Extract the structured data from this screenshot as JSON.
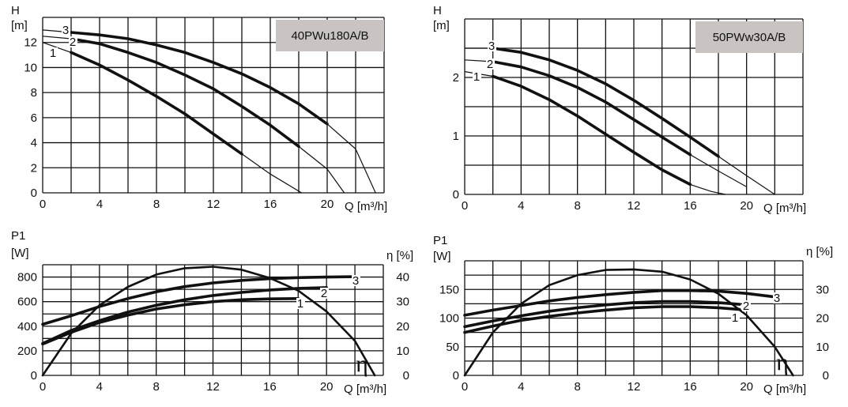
{
  "chart_data": [
    {
      "type": "line",
      "title": "40PWu180A/B",
      "title_box_color": "#c9c3c1",
      "ylabel_symbol": "H",
      "ylabel_unit": "[m]",
      "xlabel": "Q [m³/h]",
      "xlim": [
        0,
        24
      ],
      "ylim": [
        0,
        14
      ],
      "xticks": [
        "0",
        "4",
        "8",
        "12",
        "16",
        "20"
      ],
      "yticks": [
        "0",
        "2",
        "4",
        "6",
        "8",
        "10",
        "12"
      ],
      "grid": true,
      "series": [
        {
          "name": "1",
          "x": [
            0,
            2,
            4,
            6,
            8,
            10,
            12,
            14,
            16,
            18.2
          ],
          "y": [
            12.0,
            11.2,
            10.2,
            9.0,
            7.7,
            6.3,
            4.7,
            3.1,
            1.5,
            0
          ]
        },
        {
          "name": "2",
          "x": [
            0,
            2,
            4,
            6,
            8,
            10,
            12,
            14,
            16,
            18,
            20,
            21.2
          ],
          "y": [
            12.5,
            12.3,
            11.9,
            11.2,
            10.4,
            9.4,
            8.3,
            6.9,
            5.4,
            3.7,
            1.9,
            0
          ]
        },
        {
          "name": "3",
          "x": [
            0,
            2,
            4,
            6,
            8,
            10,
            12,
            14,
            16,
            18,
            20,
            22,
            23.4
          ],
          "y": [
            13.0,
            12.8,
            12.6,
            12.3,
            11.8,
            11.2,
            10.4,
            9.5,
            8.4,
            7.1,
            5.5,
            3.5,
            0
          ]
        }
      ]
    },
    {
      "type": "line",
      "title": "50PWw30A/B",
      "title_box_color": "#c9c3c1",
      "ylabel_symbol": "H",
      "ylabel_unit": "[m]",
      "xlabel": "Q [m³/h]",
      "xlim": [
        0,
        24
      ],
      "ylim": [
        0,
        3
      ],
      "xticks": [
        "0",
        "4",
        "8",
        "12",
        "16",
        "20"
      ],
      "yticks": [
        "0",
        "1",
        "2"
      ],
      "grid": true,
      "series": [
        {
          "name": "1",
          "x": [
            0,
            2,
            4,
            6,
            8,
            10,
            12,
            14,
            16,
            17.5,
            18.5
          ],
          "y": [
            2.1,
            2.02,
            1.85,
            1.62,
            1.34,
            1.03,
            0.72,
            0.42,
            0.17,
            0.05,
            0
          ]
        },
        {
          "name": "2",
          "x": [
            0,
            2,
            4,
            6,
            8,
            10,
            12,
            14,
            16,
            18,
            20
          ],
          "y": [
            2.3,
            2.27,
            2.18,
            2.03,
            1.83,
            1.58,
            1.28,
            0.98,
            0.68,
            0.4,
            0.13
          ]
        },
        {
          "name": "3",
          "x": [
            0,
            2,
            4,
            6,
            8,
            10,
            12,
            14,
            16,
            18,
            20,
            22
          ],
          "y": [
            2.5,
            2.5,
            2.43,
            2.3,
            2.12,
            1.89,
            1.61,
            1.3,
            0.98,
            0.65,
            0.32,
            0
          ]
        }
      ]
    },
    {
      "type": "line",
      "ylabel_symbol": "P1",
      "ylabel_unit": "[W]",
      "y2label": "η [%]",
      "xlabel": "Q [m³/h]",
      "xlim": [
        0,
        24
      ],
      "ylim": [
        0,
        900
      ],
      "y2lim": [
        0,
        45
      ],
      "xticks": [
        "0",
        "4",
        "8",
        "12",
        "16",
        "20"
      ],
      "yticks": [
        "0",
        "200",
        "400",
        "600",
        "800"
      ],
      "y2ticks": [
        "0",
        "10",
        "20",
        "30",
        "40"
      ],
      "grid": true,
      "series": [
        {
          "name": "1",
          "axis": "left",
          "x": [
            0,
            2,
            4,
            6,
            8,
            10,
            12,
            14,
            16,
            18
          ],
          "y": [
            255,
            350,
            430,
            490,
            540,
            575,
            600,
            615,
            622,
            625
          ]
        },
        {
          "name": "2",
          "axis": "left",
          "x": [
            0,
            2,
            4,
            6,
            8,
            10,
            12,
            14,
            16,
            18,
            20
          ],
          "y": [
            260,
            365,
            445,
            515,
            570,
            615,
            650,
            675,
            695,
            708,
            714
          ]
        },
        {
          "name": "3",
          "axis": "left",
          "x": [
            0,
            2,
            4,
            6,
            8,
            10,
            12,
            14,
            16,
            18,
            20,
            22
          ],
          "y": [
            415,
            485,
            560,
            625,
            680,
            722,
            752,
            773,
            787,
            795,
            800,
            803
          ]
        },
        {
          "name": "η",
          "axis": "right",
          "x": [
            0,
            2,
            4,
            6,
            8,
            10,
            12,
            14,
            16,
            18,
            20,
            22,
            23.4
          ],
          "y": [
            0,
            17,
            28.5,
            36,
            41,
            43.6,
            44.2,
            43,
            39.6,
            34.5,
            26,
            14,
            0
          ]
        }
      ]
    },
    {
      "type": "line",
      "ylabel_symbol": "P1",
      "ylabel_unit": "[W]",
      "y2label": "η [%]",
      "xlabel": "Q [m³/h]",
      "xlim": [
        0,
        24
      ],
      "ylim": [
        0,
        200
      ],
      "y2lim": [
        0,
        40
      ],
      "xticks": [
        "0",
        "4",
        "8",
        "12",
        "16",
        "20"
      ],
      "yticks": [
        "0",
        "50",
        "100",
        "150"
      ],
      "y2ticks": [
        "0",
        "10",
        "20",
        "30"
      ],
      "grid": true,
      "series": [
        {
          "name": "1",
          "axis": "left",
          "x": [
            0,
            2,
            4,
            6,
            8,
            10,
            12,
            14,
            16,
            18,
            19.5
          ],
          "y": [
            75,
            86,
            96,
            103,
            109,
            114,
            118,
            120,
            120,
            118,
            115
          ]
        },
        {
          "name": "2",
          "axis": "left",
          "x": [
            0,
            2,
            4,
            6,
            8,
            10,
            12,
            14,
            16,
            18,
            19.5
          ],
          "y": [
            85,
            95,
            104,
            112,
            118,
            123,
            127,
            129,
            129,
            127,
            124
          ]
        },
        {
          "name": "3",
          "axis": "left",
          "x": [
            0,
            2,
            4,
            6,
            8,
            10,
            12,
            14,
            16,
            18,
            20,
            22
          ],
          "y": [
            105,
            114,
            122,
            130,
            136,
            141,
            145,
            148,
            148,
            147,
            143,
            137
          ]
        },
        {
          "name": "η",
          "axis": "right",
          "x": [
            0,
            2,
            4,
            6,
            8,
            10,
            12,
            14,
            16,
            18,
            20,
            22,
            23.3
          ],
          "y": [
            0,
            15,
            25,
            31.5,
            35,
            36.8,
            37,
            36.2,
            33.5,
            28.5,
            21,
            10,
            0
          ]
        }
      ]
    }
  ]
}
